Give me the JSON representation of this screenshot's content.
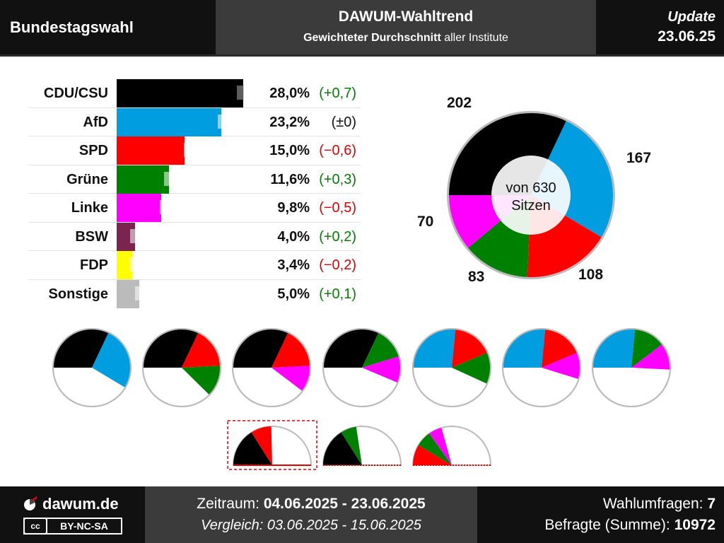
{
  "header": {
    "left_title": "Bundestagswahl",
    "mid_title": "DAWUM-Wahltrend",
    "mid_subtitle_bold": "Gewichteter Durchschnitt",
    "mid_subtitle_rest": " aller Institute",
    "update_label": "Update",
    "update_date": "23.06.25"
  },
  "chart_data": [
    {
      "type": "bar",
      "title": "",
      "categories": [
        "CDU/CSU",
        "AfD",
        "SPD",
        "Grüne",
        "Linke",
        "BSW",
        "FDP",
        "Sonstige"
      ],
      "values": [
        28.0,
        23.2,
        15.0,
        11.6,
        9.8,
        4.0,
        3.4,
        5.0
      ],
      "value_labels": [
        "28,0%",
        "23,2%",
        "15,0%",
        "11,6%",
        "9,8%",
        "4,0%",
        "3,4%",
        "5,0%"
      ],
      "changes": [
        0.7,
        0.0,
        -0.6,
        0.3,
        -0.5,
        0.2,
        -0.2,
        0.1
      ],
      "change_labels": [
        "(+0,7)",
        "(±0)",
        "(−0,6)",
        "(+0,3)",
        "(−0,5)",
        "(+0,2)",
        "(−0,2)",
        "(+0,1)"
      ],
      "colors": [
        "#000000",
        "#009ee0",
        "#ff0000",
        "#008000",
        "#ff00ff",
        "#7b2450",
        "#ffff00",
        "#bbbbbb"
      ]
    },
    {
      "type": "pie",
      "title": "",
      "center_label_line1": "von 630",
      "center_label_line2": "Sitzen",
      "total_seats": 630,
      "slices": [
        {
          "party": "CDU/CSU",
          "seats": 202,
          "label": "202",
          "color": "#000000"
        },
        {
          "party": "AfD",
          "seats": 167,
          "label": "167",
          "color": "#009ee0"
        },
        {
          "party": "SPD",
          "seats": 108,
          "label": "108",
          "color": "#ff0000"
        },
        {
          "party": "Grüne",
          "seats": 83,
          "label": "83",
          "color": "#008000"
        },
        {
          "party": "Linke",
          "seats": 70,
          "label": "70",
          "color": "#ff00ff"
        }
      ]
    },
    {
      "type": "pie",
      "title": "",
      "description": "coalition combinations (seat shares, majority line at half)",
      "coalitions": [
        {
          "parties": [
            "CDU/CSU",
            "AfD"
          ],
          "seats": [
            202,
            167
          ],
          "colors": [
            "#000000",
            "#009ee0"
          ],
          "shape": "circle"
        },
        {
          "parties": [
            "CDU/CSU",
            "SPD",
            "Grüne"
          ],
          "seats": [
            202,
            108,
            83
          ],
          "colors": [
            "#000000",
            "#ff0000",
            "#008000"
          ],
          "shape": "circle"
        },
        {
          "parties": [
            "CDU/CSU",
            "SPD",
            "Linke"
          ],
          "seats": [
            202,
            108,
            70
          ],
          "colors": [
            "#000000",
            "#ff0000",
            "#ff00ff"
          ],
          "shape": "circle"
        },
        {
          "parties": [
            "CDU/CSU",
            "Grüne",
            "Linke"
          ],
          "seats": [
            202,
            83,
            70
          ],
          "colors": [
            "#000000",
            "#008000",
            "#ff00ff"
          ],
          "shape": "circle"
        },
        {
          "parties": [
            "AfD",
            "SPD",
            "Grüne"
          ],
          "seats": [
            167,
            108,
            83
          ],
          "colors": [
            "#009ee0",
            "#ff0000",
            "#008000"
          ],
          "shape": "circle"
        },
        {
          "parties": [
            "AfD",
            "SPD",
            "Linke"
          ],
          "seats": [
            167,
            108,
            70
          ],
          "colors": [
            "#009ee0",
            "#ff0000",
            "#ff00ff"
          ],
          "shape": "circle"
        },
        {
          "parties": [
            "AfD",
            "Grüne",
            "Linke"
          ],
          "seats": [
            167,
            83,
            70
          ],
          "colors": [
            "#009ee0",
            "#008000",
            "#ff00ff"
          ],
          "shape": "circle"
        },
        {
          "parties": [
            "CDU/CSU",
            "SPD"
          ],
          "seats": [
            202,
            108
          ],
          "colors": [
            "#000000",
            "#ff0000"
          ],
          "shape": "half",
          "highlight": true
        },
        {
          "parties": [
            "CDU/CSU",
            "Grüne"
          ],
          "seats": [
            202,
            83
          ],
          "colors": [
            "#000000",
            "#008000"
          ],
          "shape": "half"
        },
        {
          "parties": [
            "SPD",
            "Grüne",
            "Linke"
          ],
          "seats": [
            108,
            83,
            70
          ],
          "colors": [
            "#ff0000",
            "#008000",
            "#ff00ff"
          ],
          "shape": "half"
        }
      ]
    }
  ],
  "footer": {
    "logo_text": "dawum.de",
    "license_cc": "cc",
    "license_text": "BY-NC-SA",
    "period_label": "Zeitraum: ",
    "period_value": "04.06.2025 - 23.06.2025",
    "compare_text": "Vergleich: 03.06.2025 - 15.06.2025",
    "polls_label": "Wahlumfragen: ",
    "polls_value": "7",
    "respondents_label": "Befragte (Summe): ",
    "respondents_value": "10972"
  }
}
